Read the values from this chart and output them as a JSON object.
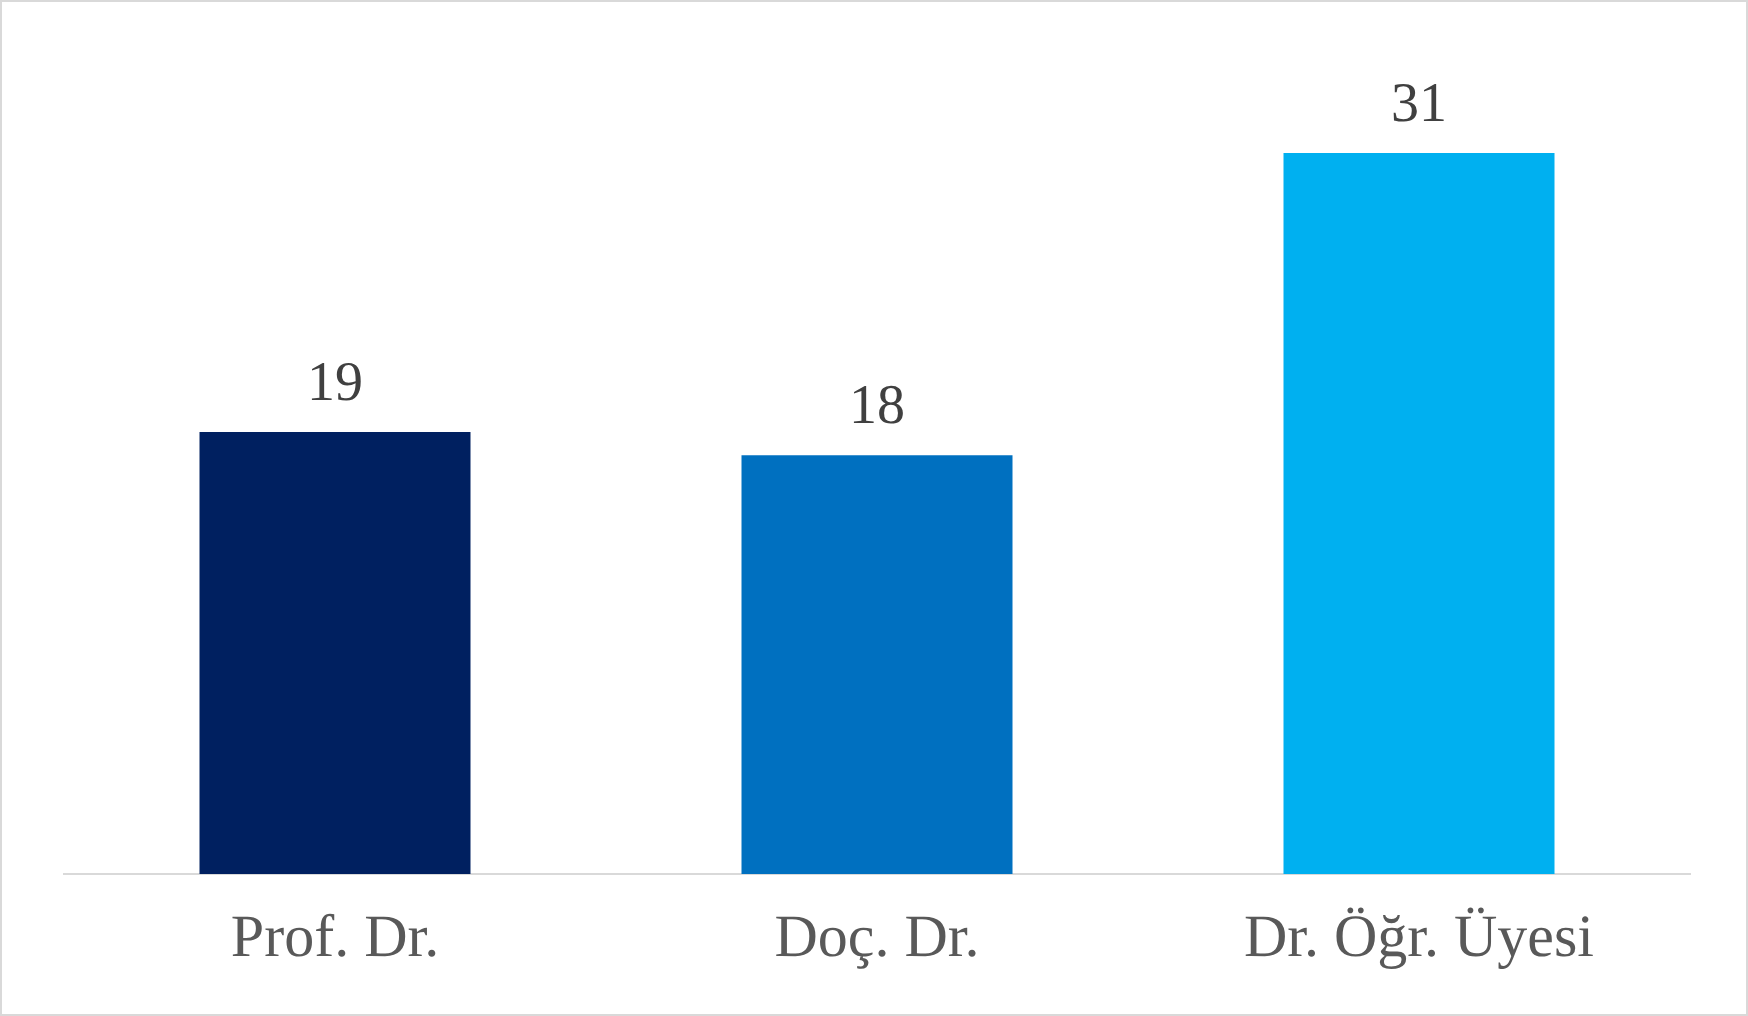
{
  "chart_data": {
    "type": "bar",
    "categories": [
      "Prof. Dr.",
      "Doç. Dr.",
      "Dr. Öğr. Üyesi"
    ],
    "values": [
      19,
      18,
      31
    ],
    "colors": [
      "#002060",
      "#0070c0",
      "#00b0f0"
    ],
    "data_labels": true,
    "tick_labels": "x"
  }
}
